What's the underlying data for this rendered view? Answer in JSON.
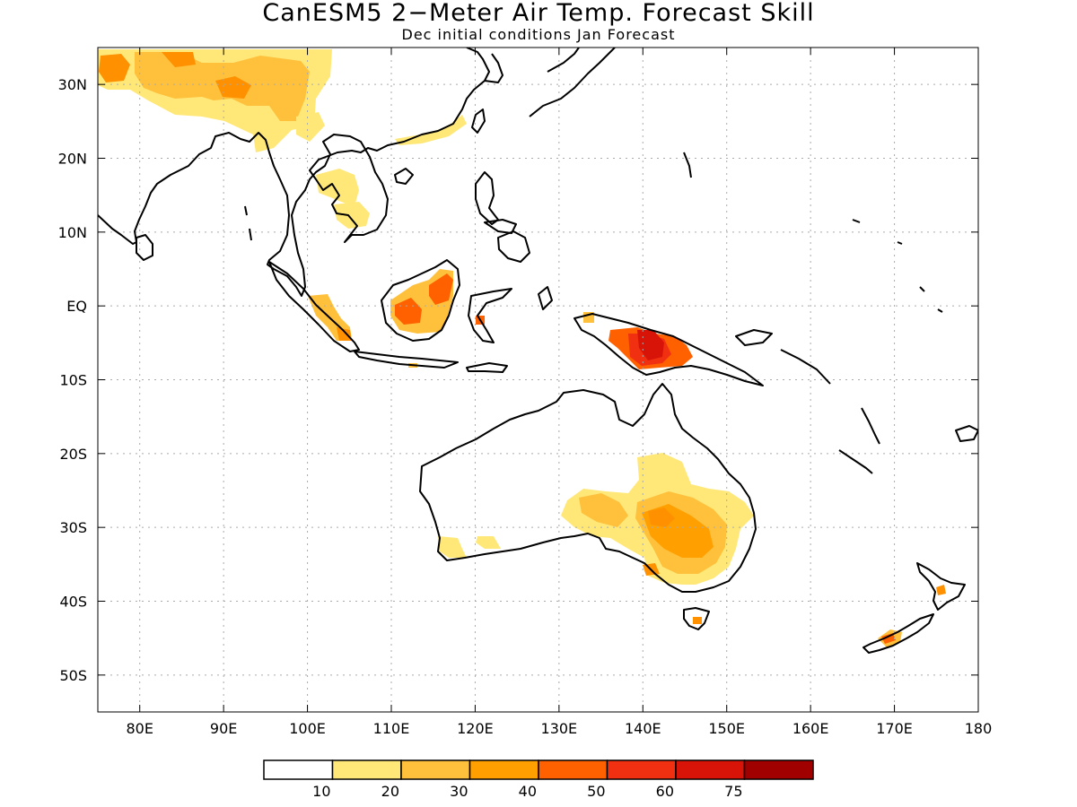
{
  "title": "CanESM5 2−Meter Air Temp. Forecast Skill",
  "subtitle": "Dec initial conditions  Jan Forecast",
  "map": {
    "lon_range": [
      75,
      180
    ],
    "lat_range": [
      -55,
      35
    ],
    "grid": true,
    "lon_ticks": [
      "80E",
      "90E",
      "100E",
      "110E",
      "120E",
      "130E",
      "140E",
      "150E",
      "160E",
      "170E",
      "180"
    ],
    "lat_ticks": [
      "30N",
      "20N",
      "10N",
      "EQ",
      "10S",
      "20S",
      "30S",
      "40S",
      "50S"
    ]
  },
  "colorbar": {
    "colors": [
      "#ffffff",
      "#ffe878",
      "#ffc03c",
      "#ffa000",
      "#ff6000",
      "#f03010",
      "#d81408",
      "#a00000"
    ],
    "labels": [
      "10",
      "20",
      "30",
      "40",
      "50",
      "60",
      "75"
    ]
  }
}
